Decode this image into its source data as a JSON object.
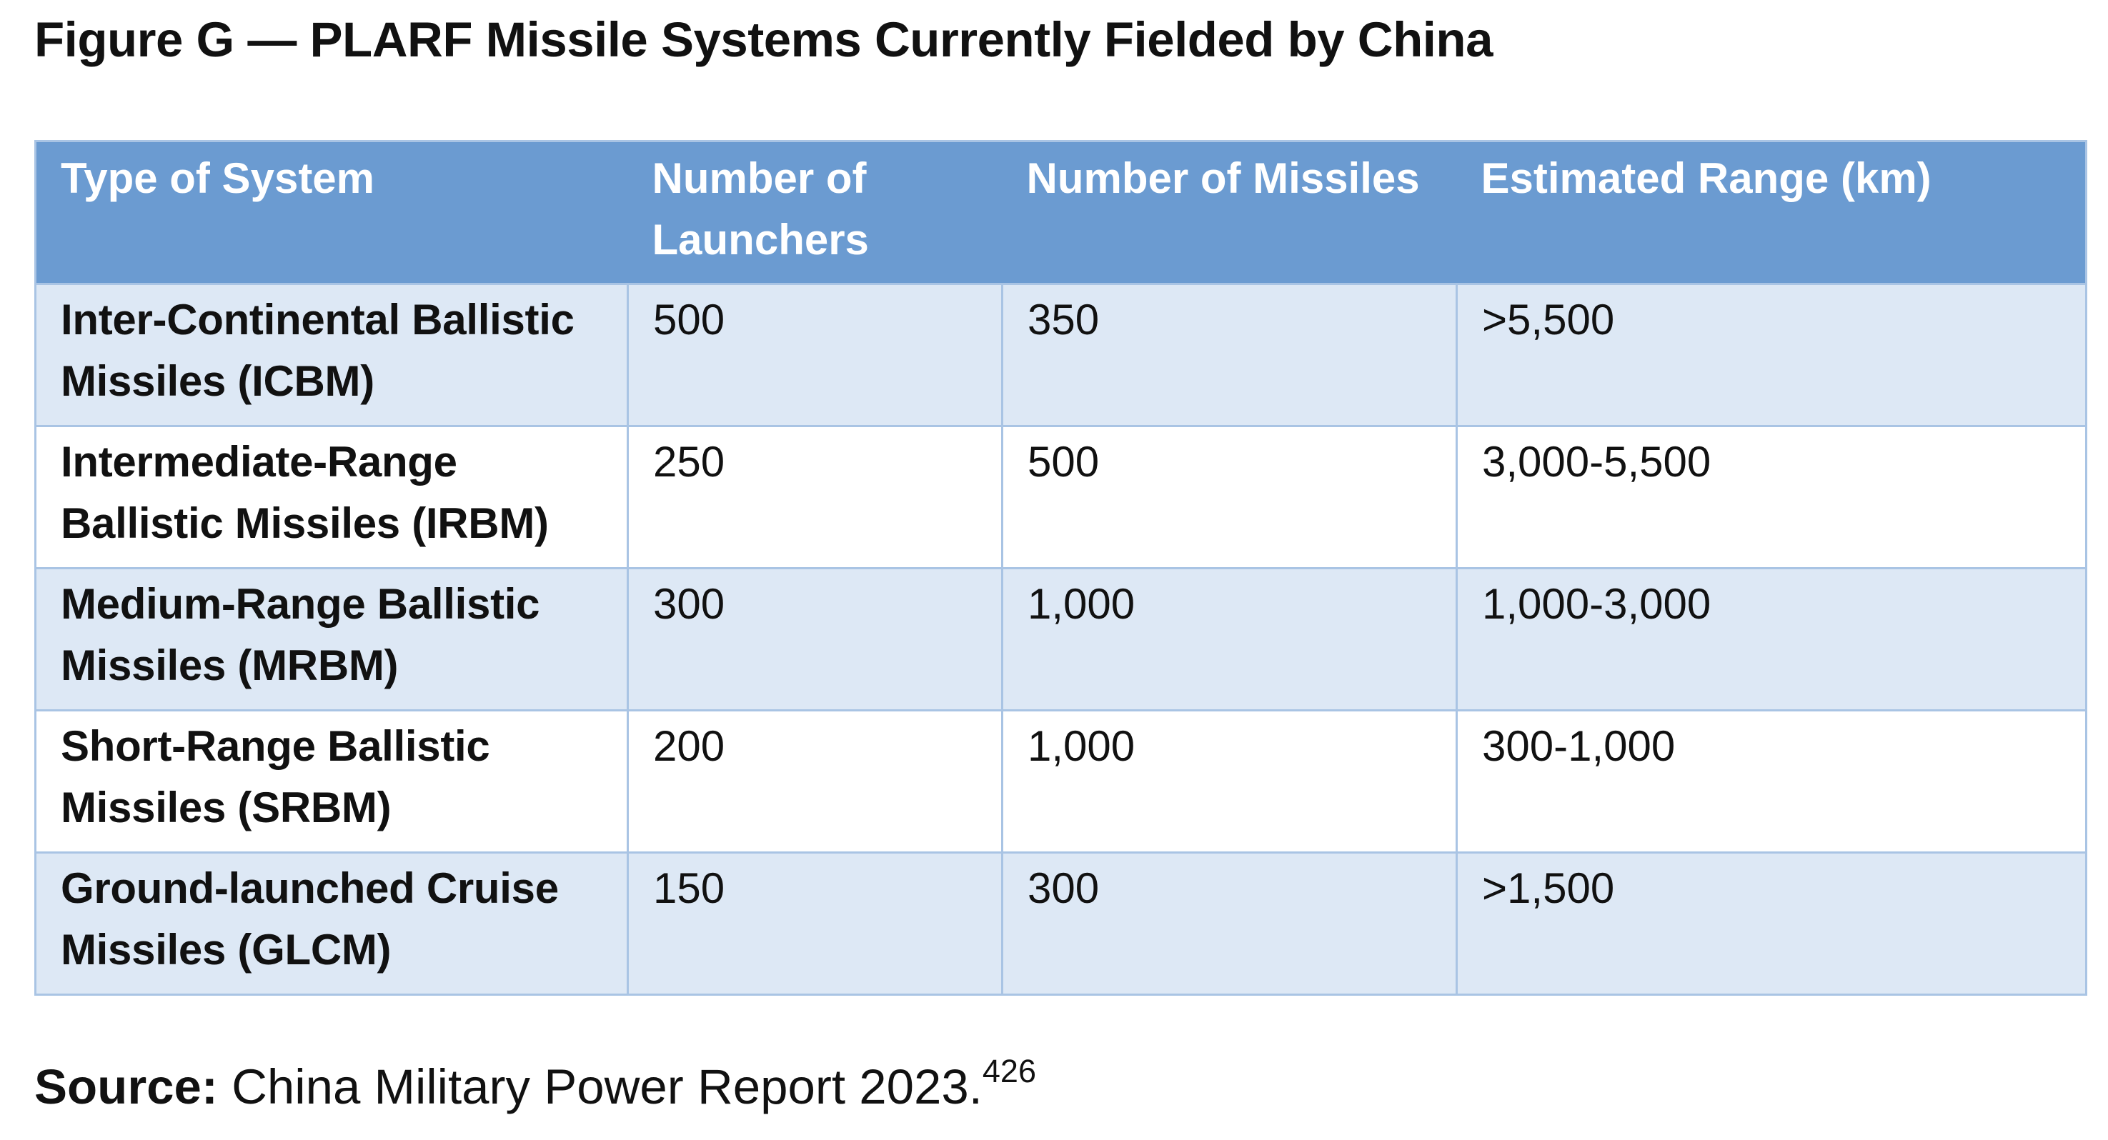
{
  "figure": {
    "title": "Figure G — PLARF Missile Systems Currently Fielded by China"
  },
  "table": {
    "headers": {
      "type_of_system": "Type of System",
      "number_of_launchers": "Number of Launchers",
      "number_of_missiles": "Number of Missiles",
      "estimated_range": "Estimated Range (km)"
    },
    "rows": [
      {
        "system": "Inter-Continental Ballistic Missiles (ICBM)",
        "launchers": "500",
        "missiles": "350",
        "range": ">5,500"
      },
      {
        "system": "Intermediate-Range Ballistic Missiles (IRBM)",
        "launchers": "250",
        "missiles": "500",
        "range": "3,000-5,500"
      },
      {
        "system": "Medium-Range Ballistic Missiles (MRBM)",
        "launchers": "300",
        "missiles": "1,000",
        "range": "1,000-3,000"
      },
      {
        "system": "Short-Range Ballistic Missiles (SRBM)",
        "launchers": "200",
        "missiles": "1,000",
        "range": "300-1,000"
      },
      {
        "system": "Ground-launched Cruise Missiles (GLCM)",
        "launchers": "150",
        "missiles": "300",
        "range": ">1,500"
      }
    ]
  },
  "source": {
    "label": "Source:",
    "text": "China Military Power Report 2023.",
    "footnote": "426"
  },
  "colors": {
    "header_background": "#6b9bd1",
    "header_text": "#ffffff",
    "row_odd_background": "#dde8f5",
    "row_even_background": "#ffffff",
    "grid_line": "#a9c4e4"
  }
}
